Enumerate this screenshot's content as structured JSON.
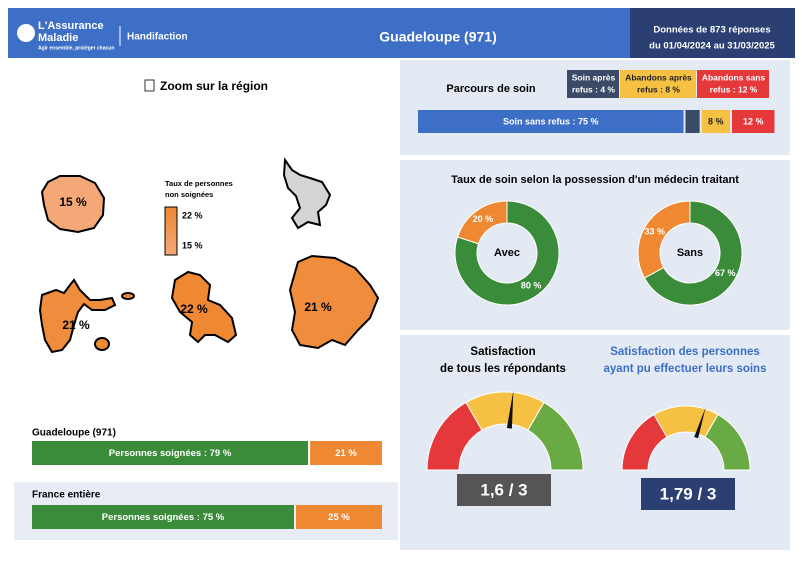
{
  "header": {
    "brand_line1": "L'Assurance",
    "brand_line2": "Maladie",
    "brand_tagline": "Agir ensemble, protéger chacun",
    "product": "Handifaction",
    "title": "Guadeloupe (971)",
    "meta": [
      "Données de 873 réponses",
      "du 01/04/2024 au 31/03/2025"
    ]
  },
  "map": {
    "title": "Zoom sur la région",
    "legend": {
      "title": [
        "Taux de personnes",
        "non soignées"
      ],
      "max": {
        "value": 22,
        "label": "22 %"
      },
      "min": {
        "value": 15,
        "label": "15 %"
      },
      "colors": [
        "#f4a878",
        "#ee8833"
      ]
    },
    "regions": [
      {
        "value": 15,
        "label": "15 %"
      },
      {
        "value": 21,
        "label": "21 %"
      },
      {
        "value": 22,
        "label": "22 %"
      },
      {
        "value": 21,
        "label": "21 %"
      }
    ]
  },
  "coverage": {
    "colors": [
      "#3a8c3a",
      "#ee8833"
    ],
    "bars": [
      {
        "title": "Guadeloupe (971)",
        "values": [
          79,
          21
        ],
        "value_labels": [
          "Personnes soignées : 79 %",
          "21 %"
        ]
      },
      {
        "title": "France entière",
        "values": [
          75,
          25
        ],
        "value_labels": [
          "Personnes soignées : 75 %",
          "25 %"
        ]
      }
    ]
  },
  "care_path": {
    "title": "Parcours de soin",
    "segments": [
      {
        "value": 75,
        "label": "Soin sans refus : 75 %",
        "color": "#3d6fc6"
      },
      {
        "value": 4,
        "legend": [
          "Soin après",
          "refus : 4 %"
        ],
        "color": "#3b4a66"
      },
      {
        "value": 8,
        "label": "8 %",
        "legend": [
          "Abandons après",
          "refus : 8 %"
        ],
        "color": "#f6c142"
      },
      {
        "value": 12,
        "label": "12 %",
        "legend": [
          "Abandons sans",
          "refus : 12 %"
        ],
        "color": "#e5383b"
      }
    ]
  },
  "doctor": {
    "title": "Taux de soin selon la possession d'un médecin traitant",
    "colors": [
      "#3a8c3a",
      "#ee8833"
    ],
    "donuts": [
      {
        "name": "Avec",
        "values": [
          80,
          20
        ],
        "value_labels": [
          "80 %",
          "20 %"
        ]
      },
      {
        "name": "Sans",
        "values": [
          67,
          33
        ],
        "value_labels": [
          "67 %",
          "33 %"
        ]
      }
    ]
  },
  "satisfaction": {
    "max": 3,
    "colors": [
      "#e5383b",
      "#f6c142",
      "#6aaa45"
    ],
    "gauges": [
      {
        "title": [
          "Satisfaction",
          "de tous les répondants"
        ],
        "value": 1.6,
        "label": "1,6 / 3"
      },
      {
        "title": [
          "Satisfaction des personnes",
          "ayant pu effectuer leurs soins"
        ],
        "value": 1.79,
        "label": "1,79 / 3"
      }
    ]
  }
}
